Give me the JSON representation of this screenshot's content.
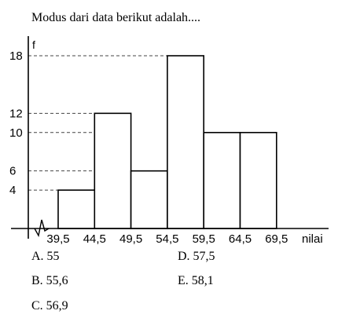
{
  "question": "Modus dari data berikut adalah....",
  "chart_data": {
    "type": "bar",
    "ylabel": "f",
    "xlabel": "nilai",
    "x_ticks": [
      "39,5",
      "44,5",
      "49,5",
      "54,5",
      "59,5",
      "64,5",
      "69,5"
    ],
    "y_ticks": [
      4,
      6,
      10,
      12,
      18
    ],
    "bins": [
      {
        "from": 39.5,
        "to": 44.5,
        "value": 4
      },
      {
        "from": 44.5,
        "to": 49.5,
        "value": 12
      },
      {
        "from": 49.5,
        "to": 54.5,
        "value": 6
      },
      {
        "from": 54.5,
        "to": 59.5,
        "value": 18
      },
      {
        "from": 59.5,
        "to": 64.5,
        "value": 10
      },
      {
        "from": 64.5,
        "to": 69.5,
        "value": 10
      }
    ],
    "ylim": [
      0,
      18
    ]
  },
  "options": [
    {
      "label": "A. 55"
    },
    {
      "label": "B. 55,6"
    },
    {
      "label": "C. 56,9"
    },
    {
      "label": "D. 57,5"
    },
    {
      "label": "E. 58,1"
    }
  ]
}
